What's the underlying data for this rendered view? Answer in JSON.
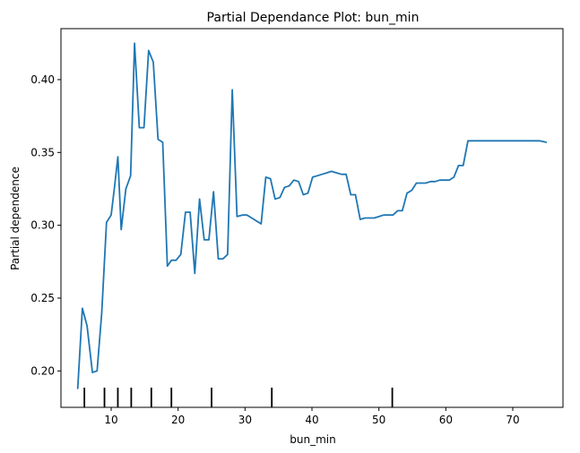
{
  "chart_data": {
    "type": "line",
    "title": "Partial Dependance Plot: bun_min",
    "xlabel": "bun_min",
    "ylabel": "Partial dependence",
    "xlim": [
      2.5,
      77.5
    ],
    "ylim": [
      0.175,
      0.435
    ],
    "xticks": [
      10,
      20,
      30,
      40,
      50,
      60,
      70
    ],
    "xtick_labels": [
      "10",
      "20",
      "30",
      "40",
      "50",
      "60",
      "70"
    ],
    "yticks": [
      0.2,
      0.25,
      0.3,
      0.35,
      0.4
    ],
    "ytick_labels": [
      "0.20",
      "0.25",
      "0.30",
      "0.35",
      "0.40"
    ],
    "grid": false,
    "line_color": "#1f77b4",
    "rug_deciles": [
      6,
      9,
      11,
      13,
      16,
      19,
      25,
      34,
      52
    ],
    "series": [
      {
        "x": [
          5,
          5.7,
          6.4,
          7.2,
          7.9,
          8.6,
          9.3,
          10.0,
          10.5,
          11.0,
          11.5,
          12.2,
          12.9,
          13.5,
          14.2,
          14.9,
          15.6,
          16.3,
          17.0,
          17.7,
          18.4,
          19.0,
          19.7,
          20.4,
          21.1,
          21.8,
          22.5,
          23.2,
          23.9,
          24.6,
          25.3,
          26.0,
          26.7,
          27.4,
          28.1,
          28.8,
          29.6,
          30.3,
          31.0,
          31.7,
          32.4,
          33.1,
          33.8,
          34.5,
          35.2,
          35.9,
          36.6,
          37.3,
          38.0,
          38.7,
          39.4,
          40.1,
          40.8,
          41.5,
          42.2,
          42.9,
          43.7,
          44.4,
          45.1,
          45.8,
          46.5,
          47.2,
          47.9,
          48.6,
          49.3,
          50.0,
          50.7,
          51.4,
          52.1,
          52.8,
          53.5,
          54.2,
          54.9,
          55.6,
          56.3,
          57.0,
          57.7,
          58.4,
          59.1,
          59.8,
          60.5,
          61.2,
          61.9,
          62.6,
          63.3,
          64.0,
          66.0,
          68.0,
          70.0,
          72.0,
          74.0,
          75.0
        ],
        "y": [
          0.188,
          0.243,
          0.231,
          0.199,
          0.2,
          0.24,
          0.302,
          0.307,
          0.326,
          0.347,
          0.297,
          0.325,
          0.334,
          0.425,
          0.367,
          0.367,
          0.42,
          0.412,
          0.359,
          0.357,
          0.272,
          0.276,
          0.276,
          0.28,
          0.309,
          0.309,
          0.267,
          0.318,
          0.29,
          0.29,
          0.323,
          0.277,
          0.277,
          0.28,
          0.393,
          0.306,
          0.307,
          0.307,
          0.305,
          0.303,
          0.301,
          0.333,
          0.332,
          0.318,
          0.319,
          0.326,
          0.327,
          0.331,
          0.33,
          0.321,
          0.322,
          0.333,
          0.334,
          0.335,
          0.336,
          0.337,
          0.336,
          0.335,
          0.335,
          0.321,
          0.321,
          0.304,
          0.305,
          0.305,
          0.305,
          0.306,
          0.307,
          0.307,
          0.307,
          0.31,
          0.31,
          0.322,
          0.324,
          0.329,
          0.329,
          0.329,
          0.33,
          0.33,
          0.331,
          0.331,
          0.331,
          0.333,
          0.341,
          0.341,
          0.358,
          0.358,
          0.358,
          0.358,
          0.358,
          0.358,
          0.358,
          0.357
        ]
      }
    ]
  }
}
